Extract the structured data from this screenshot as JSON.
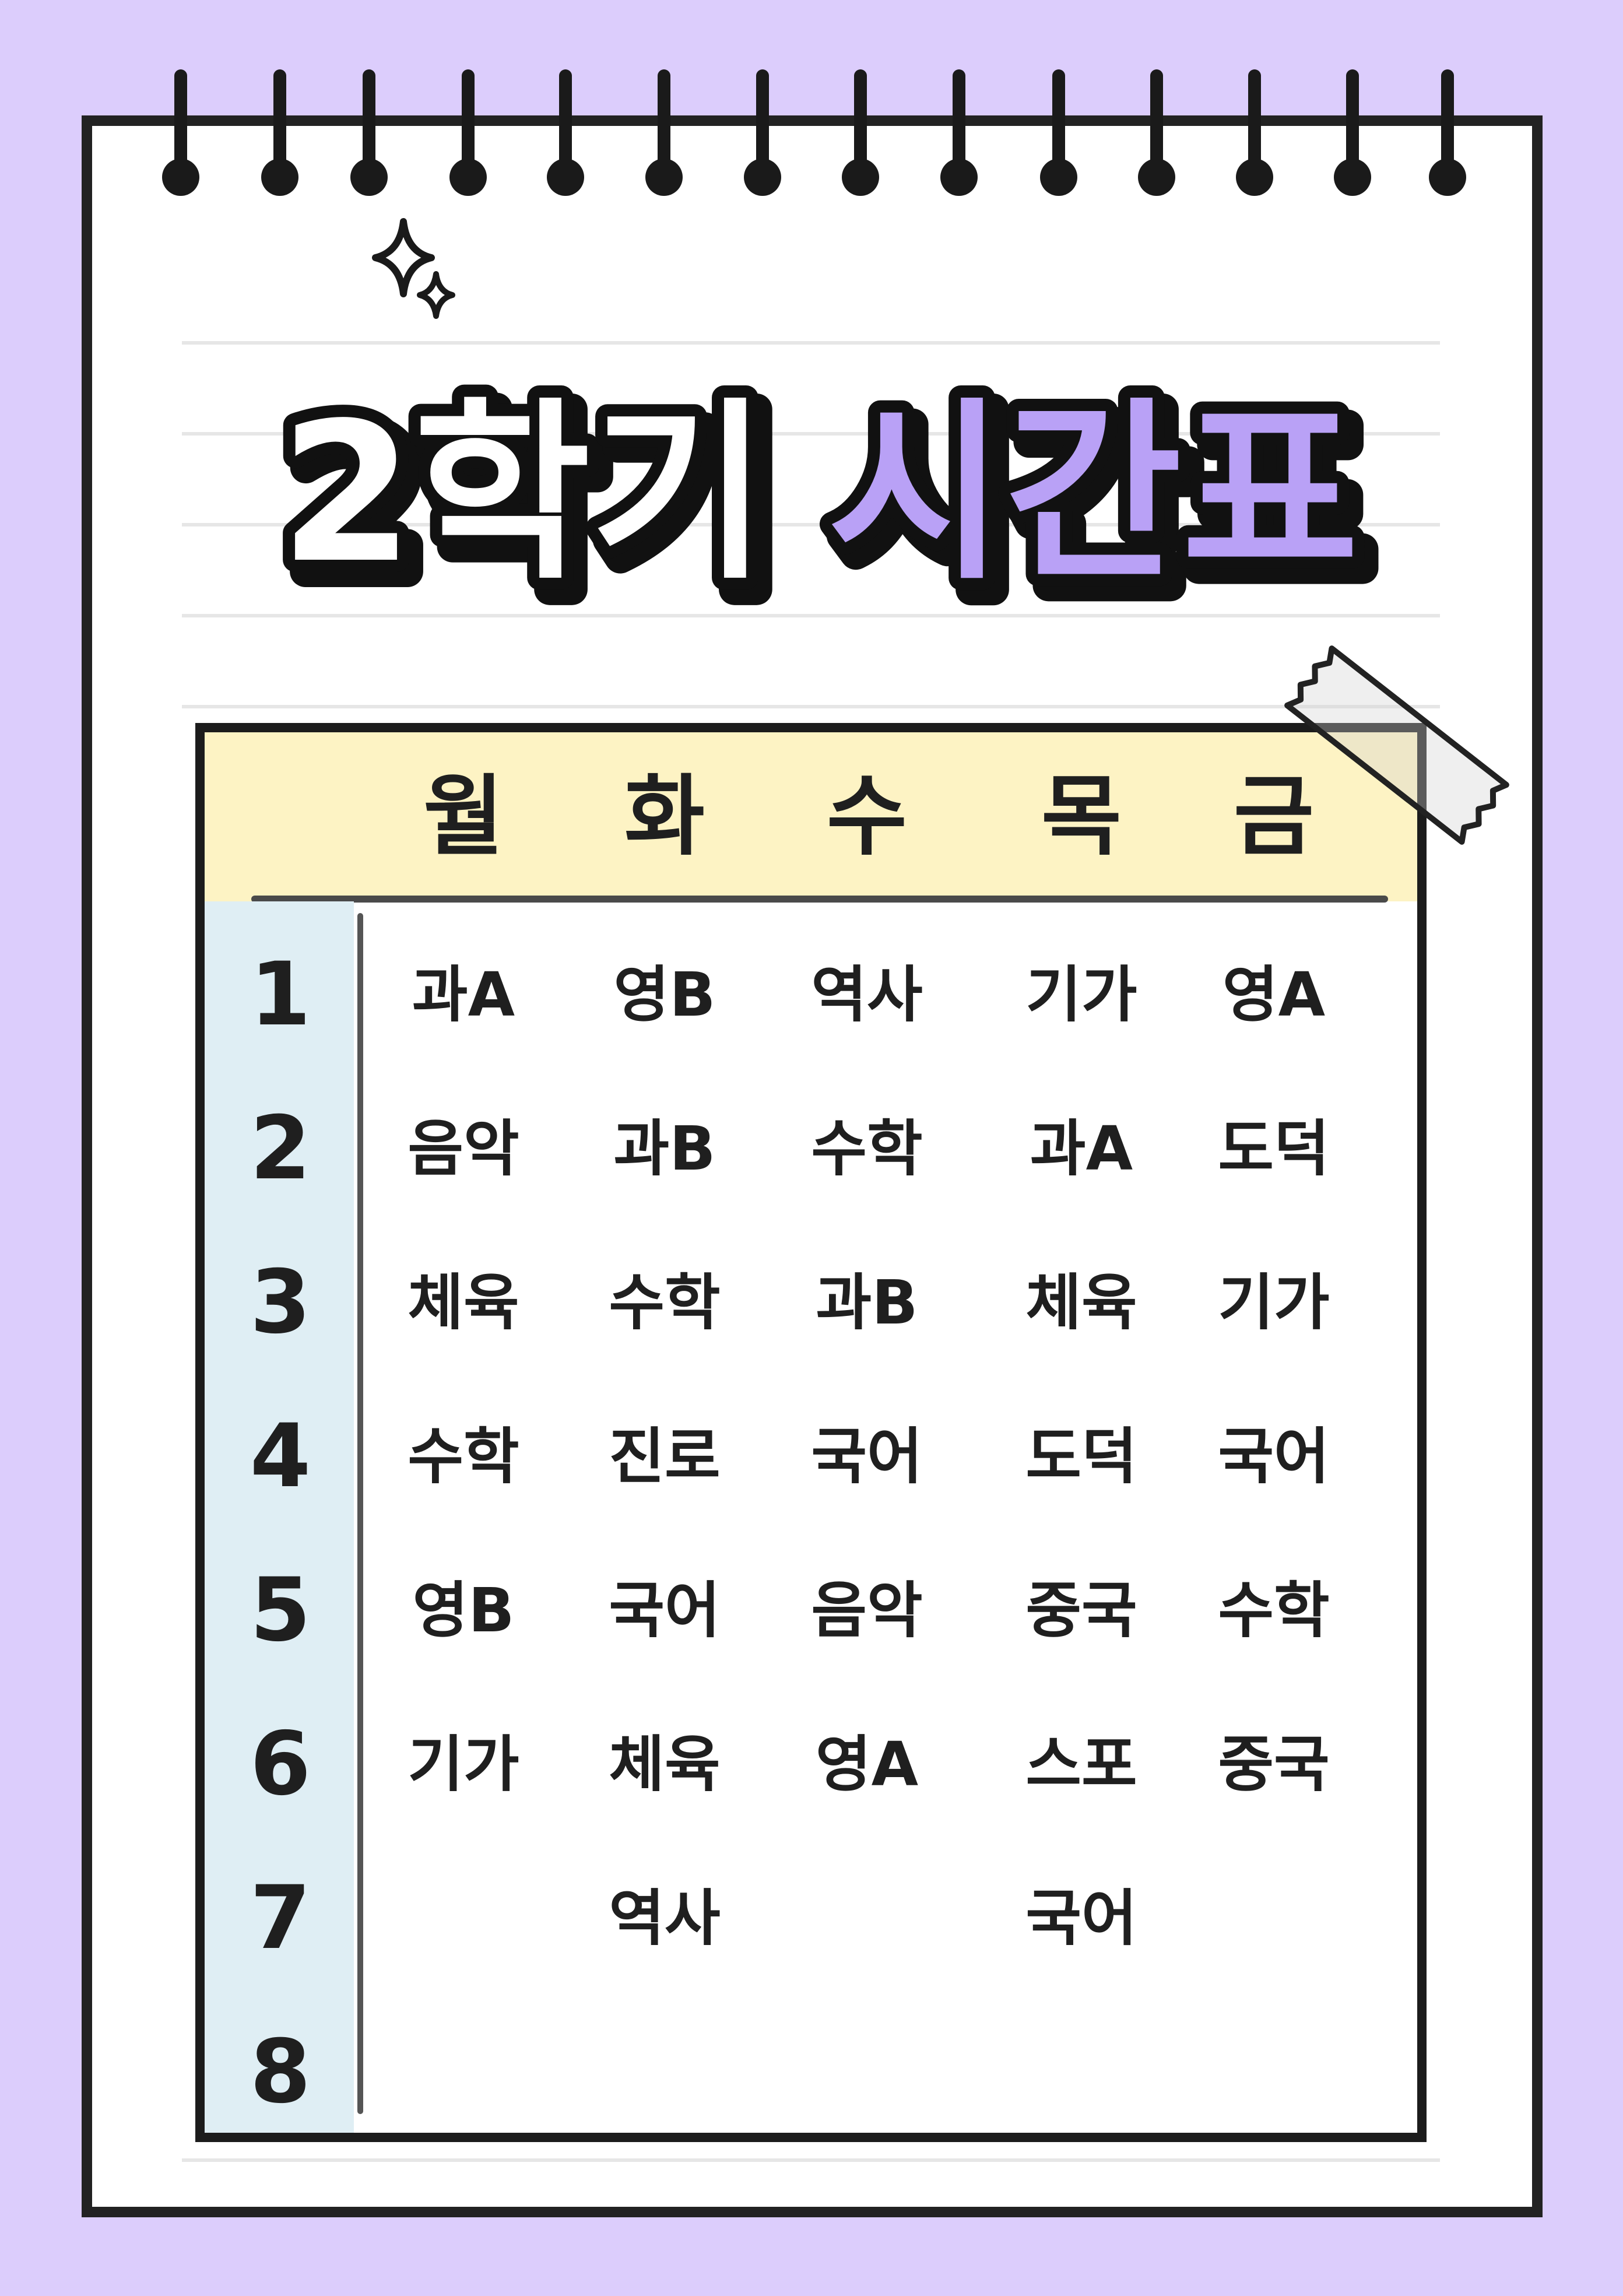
{
  "title": {
    "part1": "2학기",
    "part2": "시간표",
    "part1_fill": "#ffffff",
    "part2_fill": "#b9a1f6",
    "outline_color": "#111111"
  },
  "timetable": {
    "days": [
      "월",
      "화",
      "수",
      "목",
      "금"
    ],
    "periods": [
      "1",
      "2",
      "3",
      "4",
      "5",
      "6",
      "7",
      "8"
    ],
    "rows": [
      [
        "과A",
        "영B",
        "역사",
        "기가",
        "영A"
      ],
      [
        "음악",
        "과B",
        "수학",
        "과A",
        "도덕"
      ],
      [
        "체육",
        "수학",
        "과B",
        "체육",
        "기가"
      ],
      [
        "수학",
        "진로",
        "국어",
        "도덕",
        "국어"
      ],
      [
        "영B",
        "국어",
        "음악",
        "중국",
        "수학"
      ],
      [
        "기가",
        "체육",
        "영A",
        "스포",
        "중국"
      ],
      [
        "",
        "역사",
        "",
        "국어",
        ""
      ],
      [
        "",
        "",
        "",
        "",
        ""
      ]
    ]
  },
  "colors": {
    "background": "#dccdfc",
    "header_band": "#fdf3c4",
    "period_band": "#dfeef4",
    "ink": "#1f1f1f"
  },
  "icons": {
    "sparkle": "sparkle-icon",
    "binding_ring": "binding-ring-icon",
    "tape": "washi-tape-icon"
  }
}
